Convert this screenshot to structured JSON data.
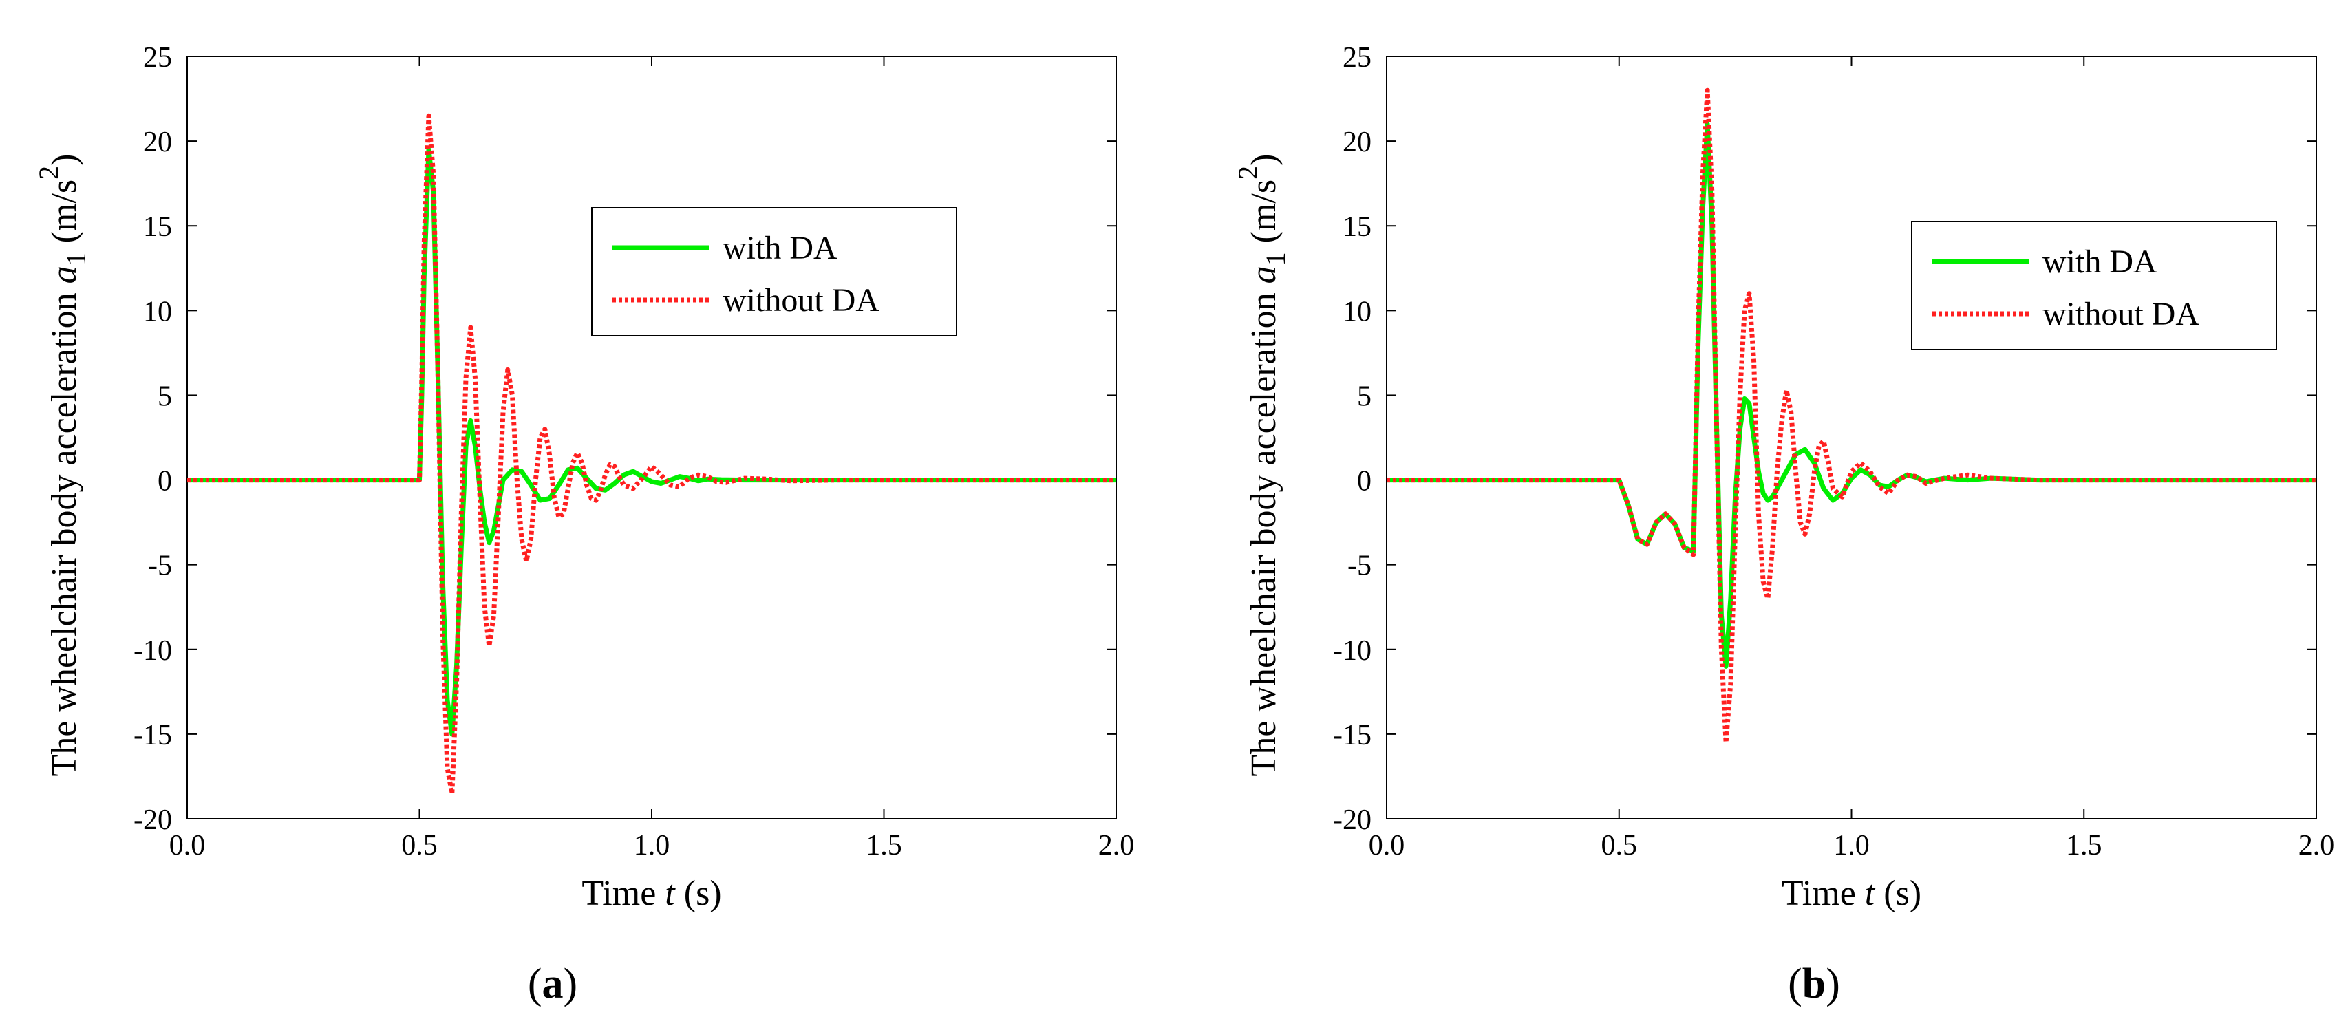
{
  "figure": {
    "charts": [
      {
        "id": "a",
        "panel_label_open": "(",
        "panel_label_letter": "a",
        "panel_label_close": ")"
      },
      {
        "id": "b",
        "panel_label_open": "(",
        "panel_label_letter": "b",
        "panel_label_close": ")"
      }
    ]
  },
  "chart_data": [
    {
      "type": "line",
      "panel": "a",
      "xlabel": {
        "pre": "Time ",
        "var": "t",
        "post": " (s)"
      },
      "ylabel": {
        "pre": "The wheelchair body acceleration ",
        "var": "a",
        "sub": "1",
        "units": "  (m/s",
        "sup": "2",
        "close": ")"
      },
      "xlim": [
        0,
        2
      ],
      "ylim": [
        -20,
        25
      ],
      "xticks": [
        0,
        0.5,
        1,
        1.5,
        2
      ],
      "xtick_labels": [
        "0.0",
        "0.5",
        "1.0",
        "1.5",
        "2.0"
      ],
      "yticks": [
        25,
        20,
        15,
        10,
        5,
        0,
        -5,
        -10,
        -15,
        -20
      ],
      "ytick_labels": [
        "25",
        "20",
        "15",
        "10",
        "5",
        "0",
        "-5",
        "-10",
        "-15",
        "-20"
      ],
      "grid": false,
      "legend_position": "upper-right",
      "series": [
        {
          "name": "with DA",
          "color": "#00ee00",
          "style": "solid",
          "x": [
            0,
            0.5,
            0.505,
            0.51,
            0.52,
            0.53,
            0.54,
            0.55,
            0.56,
            0.57,
            0.58,
            0.59,
            0.6,
            0.61,
            0.62,
            0.63,
            0.64,
            0.65,
            0.66,
            0.67,
            0.68,
            0.7,
            0.72,
            0.74,
            0.76,
            0.78,
            0.8,
            0.82,
            0.84,
            0.86,
            0.88,
            0.9,
            0.92,
            0.94,
            0.96,
            0.98,
            1.0,
            1.02,
            1.04,
            1.06,
            1.08,
            1.1,
            1.12,
            1.15,
            1.2,
            1.3,
            1.5,
            2.0
          ],
          "values": [
            0,
            0,
            5,
            12,
            19.5,
            17,
            6,
            -6,
            -13,
            -15,
            -11,
            -4,
            2,
            3.5,
            2,
            -0.5,
            -2.5,
            -3.7,
            -3,
            -1.5,
            0,
            0.6,
            0.5,
            -0.3,
            -1.2,
            -1.1,
            -0.3,
            0.6,
            0.7,
            0.1,
            -0.5,
            -0.6,
            -0.2,
            0.3,
            0.5,
            0.2,
            -0.1,
            -0.2,
            0,
            0.2,
            0.1,
            -0.05,
            0.05,
            0.02,
            0,
            0,
            0,
            0
          ]
        },
        {
          "name": "without DA",
          "color": "#ff2020",
          "style": "dotted",
          "x": [
            0,
            0.5,
            0.505,
            0.51,
            0.52,
            0.53,
            0.54,
            0.55,
            0.56,
            0.57,
            0.58,
            0.59,
            0.6,
            0.61,
            0.62,
            0.63,
            0.64,
            0.65,
            0.66,
            0.67,
            0.68,
            0.69,
            0.7,
            0.71,
            0.72,
            0.73,
            0.74,
            0.75,
            0.76,
            0.77,
            0.78,
            0.79,
            0.8,
            0.81,
            0.82,
            0.83,
            0.84,
            0.85,
            0.86,
            0.87,
            0.88,
            0.89,
            0.9,
            0.91,
            0.92,
            0.93,
            0.94,
            0.96,
            0.98,
            1.0,
            1.02,
            1.04,
            1.06,
            1.08,
            1.1,
            1.12,
            1.14,
            1.16,
            1.2,
            1.25,
            1.3,
            1.4,
            1.5,
            1.7,
            2.0
          ],
          "values": [
            0,
            0,
            6,
            14,
            21.5,
            18,
            6,
            -9,
            -17,
            -18.5,
            -12,
            -2,
            6,
            9,
            6,
            -1,
            -7.5,
            -9.8,
            -8,
            -2,
            4,
            6.5,
            5,
            0,
            -3.5,
            -4.8,
            -3.5,
            0,
            2.5,
            3,
            1.5,
            -1,
            -2.2,
            -2,
            -0.5,
            1,
            1.6,
            1,
            -0.3,
            -1.1,
            -1.2,
            -0.6,
            0.3,
            0.9,
            0.8,
            0.2,
            -0.3,
            -0.5,
            0.1,
            0.8,
            0.3,
            -0.3,
            -0.4,
            0.1,
            0.3,
            0.2,
            -0.1,
            -0.15,
            0.1,
            0.05,
            -0.05,
            0,
            0,
            0,
            0
          ]
        }
      ]
    },
    {
      "type": "line",
      "panel": "b",
      "xlabel": {
        "pre": "Time ",
        "var": "t",
        "post": " (s)"
      },
      "ylabel": {
        "pre": "The wheelchair body acceleration ",
        "var": "a",
        "sub": "1",
        "units": "  (m/s",
        "sup": "2",
        "close": ")"
      },
      "xlim": [
        0,
        2
      ],
      "ylim": [
        -20,
        25
      ],
      "xticks": [
        0,
        0.5,
        1,
        1.5,
        2
      ],
      "xtick_labels": [
        "0.0",
        "0.5",
        "1.0",
        "1.5",
        "2.0"
      ],
      "yticks": [
        25,
        20,
        15,
        10,
        5,
        0,
        -5,
        -10,
        -15,
        -20
      ],
      "ytick_labels": [
        "25",
        "20",
        "15",
        "10",
        "5",
        "0",
        "-5",
        "-10",
        "-15",
        "-20"
      ],
      "grid": false,
      "legend_position": "upper-right",
      "series": [
        {
          "name": "with DA",
          "color": "#00ee00",
          "style": "solid",
          "x": [
            0,
            0.5,
            0.52,
            0.54,
            0.56,
            0.58,
            0.6,
            0.62,
            0.64,
            0.66,
            0.67,
            0.68,
            0.69,
            0.7,
            0.71,
            0.72,
            0.73,
            0.74,
            0.75,
            0.76,
            0.77,
            0.78,
            0.79,
            0.8,
            0.81,
            0.82,
            0.83,
            0.84,
            0.86,
            0.88,
            0.9,
            0.92,
            0.94,
            0.96,
            0.98,
            1.0,
            1.02,
            1.04,
            1.06,
            1.08,
            1.1,
            1.12,
            1.14,
            1.16,
            1.2,
            1.25,
            1.3,
            1.4,
            1.6,
            2.0
          ],
          "values": [
            0,
            0,
            -1.5,
            -3.5,
            -3.8,
            -2.5,
            -2,
            -2.6,
            -4,
            -4.2,
            8,
            16,
            21,
            15,
            3,
            -8,
            -11,
            -7,
            -1,
            3,
            4.8,
            4.5,
            2.5,
            0.5,
            -0.8,
            -1.2,
            -1,
            -0.5,
            0.5,
            1.5,
            1.8,
            1,
            -0.5,
            -1.2,
            -0.8,
            0.1,
            0.6,
            0.3,
            -0.3,
            -0.4,
            0,
            0.3,
            0.15,
            -0.1,
            0.1,
            0,
            0.1,
            0,
            0,
            0
          ]
        },
        {
          "name": "without DA",
          "color": "#ff2020",
          "style": "dotted",
          "x": [
            0,
            0.5,
            0.52,
            0.54,
            0.56,
            0.58,
            0.6,
            0.62,
            0.64,
            0.66,
            0.67,
            0.68,
            0.69,
            0.7,
            0.71,
            0.72,
            0.73,
            0.74,
            0.75,
            0.76,
            0.77,
            0.78,
            0.79,
            0.8,
            0.81,
            0.82,
            0.83,
            0.84,
            0.85,
            0.86,
            0.87,
            0.88,
            0.89,
            0.9,
            0.91,
            0.92,
            0.93,
            0.94,
            0.95,
            0.96,
            0.98,
            1.0,
            1.02,
            1.04,
            1.06,
            1.08,
            1.1,
            1.12,
            1.14,
            1.16,
            1.2,
            1.25,
            1.3,
            1.4,
            1.6,
            2.0
          ],
          "values": [
            0,
            0,
            -1.5,
            -3.5,
            -3.8,
            -2.5,
            -2,
            -2.6,
            -4,
            -4.4,
            9,
            18,
            23,
            17,
            3,
            -10,
            -15.5,
            -12,
            -3,
            5,
            10,
            11,
            7,
            -2,
            -6,
            -7,
            -4,
            0.5,
            3.5,
            5.3,
            4,
            0.5,
            -2.5,
            -3.2,
            -2,
            0.5,
            2,
            2.3,
            1,
            -0.5,
            -1,
            0.5,
            1,
            0.5,
            -0.4,
            -0.8,
            0,
            0.3,
            0.2,
            -0.2,
            0.1,
            0.3,
            0.1,
            0,
            0,
            0
          ]
        }
      ]
    }
  ]
}
